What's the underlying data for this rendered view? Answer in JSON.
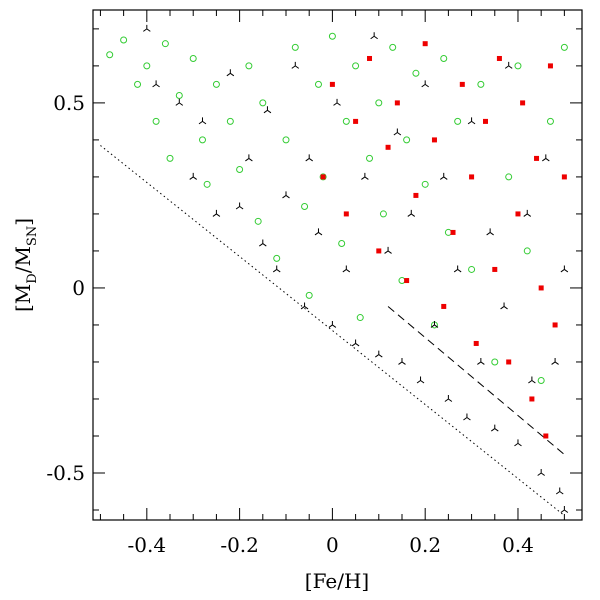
{
  "chart_data": {
    "type": "scatter",
    "xlabel": "[Fe/H]",
    "ylabel_parts": [
      "[M",
      "D",
      "/M",
      "SN",
      "]"
    ],
    "xlim": [
      -0.516,
      0.538
    ],
    "ylim": [
      -0.627,
      0.751
    ],
    "xticks": [
      -0.4,
      -0.2,
      0,
      0.2,
      0.4
    ],
    "yticks": [
      -0.5,
      0,
      0.5
    ],
    "xminorticks": [
      -0.5,
      -0.45,
      -0.35,
      -0.3,
      -0.25,
      -0.15,
      -0.1,
      -0.05,
      0.05,
      0.1,
      0.15,
      0.25,
      0.3,
      0.35,
      0.45,
      0.5
    ],
    "yminorticks": [
      -0.6,
      -0.4,
      -0.3,
      -0.2,
      -0.1,
      0.1,
      0.2,
      0.3,
      0.4,
      0.6,
      0.7
    ],
    "series": [
      {
        "marker": "circle",
        "color": "#33cc33",
        "x": [
          -0.48,
          -0.45,
          -0.42,
          -0.4,
          -0.38,
          -0.36,
          -0.35,
          -0.33,
          -0.3,
          -0.28,
          -0.27,
          -0.25,
          -0.22,
          -0.2,
          -0.18,
          -0.16,
          -0.15,
          -0.12,
          -0.1,
          -0.08,
          -0.06,
          -0.05,
          -0.03,
          -0.02,
          0,
          0.02,
          0.03,
          0.05,
          0.06,
          0.08,
          0.1,
          0.11,
          0.13,
          0.15,
          0.16,
          0.18,
          0.2,
          0.22,
          0.24,
          0.25,
          0.27,
          0.3,
          0.32,
          0.35,
          0.38,
          0.4,
          0.42,
          0.45,
          0.47,
          0.5
        ],
        "values": [
          0.63,
          0.67,
          0.55,
          0.6,
          0.45,
          0.66,
          0.35,
          0.52,
          0.62,
          0.4,
          0.28,
          0.55,
          0.45,
          0.32,
          0.6,
          0.18,
          0.5,
          0.08,
          0.4,
          0.65,
          0.22,
          -0.02,
          0.55,
          0.3,
          0.68,
          0.12,
          0.45,
          0.6,
          -0.08,
          0.35,
          0.5,
          0.2,
          0.65,
          0.02,
          0.4,
          0.58,
          0.28,
          -0.1,
          0.62,
          0.15,
          0.45,
          0.05,
          0.55,
          -0.2,
          0.3,
          0.6,
          0.1,
          -0.25,
          0.45,
          0.65
        ]
      },
      {
        "marker": "tripod",
        "color": "#000000",
        "x": [
          -0.4,
          -0.38,
          -0.33,
          -0.3,
          -0.28,
          -0.25,
          -0.22,
          -0.2,
          -0.18,
          -0.15,
          -0.14,
          -0.12,
          -0.1,
          -0.08,
          -0.06,
          -0.05,
          -0.03,
          0,
          0.01,
          0.03,
          0.05,
          0.07,
          0.09,
          0.1,
          0.12,
          0.14,
          0.15,
          0.17,
          0.19,
          0.2,
          0.22,
          0.24,
          0.25,
          0.27,
          0.29,
          0.3,
          0.32,
          0.34,
          0.35,
          0.37,
          0.38,
          0.4,
          0.42,
          0.43,
          0.45,
          0.46,
          0.48,
          0.49,
          0.5,
          0.5
        ],
        "values": [
          0.7,
          0.55,
          0.5,
          0.3,
          0.45,
          0.2,
          0.58,
          0.22,
          0.35,
          0.12,
          0.48,
          0.05,
          0.25,
          0.6,
          -0.05,
          0.35,
          0.15,
          -0.1,
          0.5,
          0.05,
          -0.15,
          0.3,
          0.68,
          -0.18,
          0.1,
          0.42,
          -0.2,
          0.2,
          -0.25,
          0.55,
          -0.1,
          0.3,
          -0.3,
          0.05,
          -0.35,
          0.45,
          -0.2,
          0.15,
          -0.38,
          -0.05,
          0.6,
          -0.42,
          0.2,
          -0.25,
          -0.5,
          0.35,
          -0.2,
          -0.55,
          -0.6,
          0.05
        ]
      },
      {
        "marker": "square",
        "color": "#ee0000",
        "x": [
          -0.02,
          0.0,
          0.03,
          0.05,
          0.08,
          0.1,
          0.12,
          0.14,
          0.16,
          0.18,
          0.2,
          0.22,
          0.24,
          0.26,
          0.28,
          0.3,
          0.31,
          0.33,
          0.35,
          0.36,
          0.38,
          0.4,
          0.41,
          0.43,
          0.44,
          0.45,
          0.46,
          0.47,
          0.48,
          0.5
        ],
        "values": [
          0.3,
          0.55,
          0.2,
          0.45,
          0.62,
          0.1,
          0.38,
          0.5,
          0.02,
          0.25,
          0.66,
          0.4,
          -0.05,
          0.15,
          0.55,
          0.3,
          -0.15,
          0.45,
          0.05,
          0.62,
          -0.2,
          0.2,
          0.5,
          -0.3,
          0.35,
          0.0,
          -0.4,
          0.6,
          -0.1,
          0.3
        ]
      }
    ],
    "lines": [
      {
        "style": "dotted",
        "x": [
          -0.5,
          0.5
        ],
        "values": [
          0.385,
          -0.615
        ]
      },
      {
        "style": "dashed",
        "x": [
          0.12,
          0.5
        ],
        "values": [
          -0.05,
          -0.45
        ]
      }
    ]
  }
}
